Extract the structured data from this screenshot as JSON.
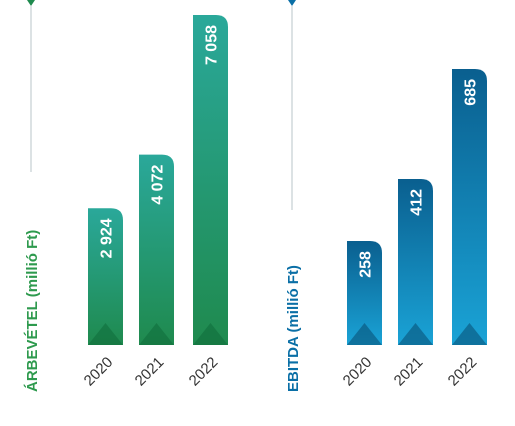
{
  "colors": {
    "green_dark": "#1f8a4e",
    "green_light": "#2aa89a",
    "blue_dark": "#0a5f8f",
    "blue_light": "#1aa3d6",
    "green_title": "#2e9a4e",
    "blue_title": "#0a6fa6",
    "rule": "#b9c4c9"
  },
  "chart_data": [
    {
      "type": "bar",
      "title": "",
      "ylabel": "ÁRBEVÉTEL (millió Ft)",
      "categories": [
        "2020",
        "2021",
        "2022"
      ],
      "values": [
        2924,
        4072,
        7058
      ],
      "value_labels": [
        "2 924",
        "4 072",
        "7 058"
      ]
    },
    {
      "type": "bar",
      "title": "",
      "ylabel": "EBITDA (millió Ft)",
      "categories": [
        "2020",
        "2021",
        "2022"
      ],
      "values": [
        258,
        412,
        685
      ],
      "value_labels": [
        "258",
        "412",
        "685"
      ]
    }
  ]
}
